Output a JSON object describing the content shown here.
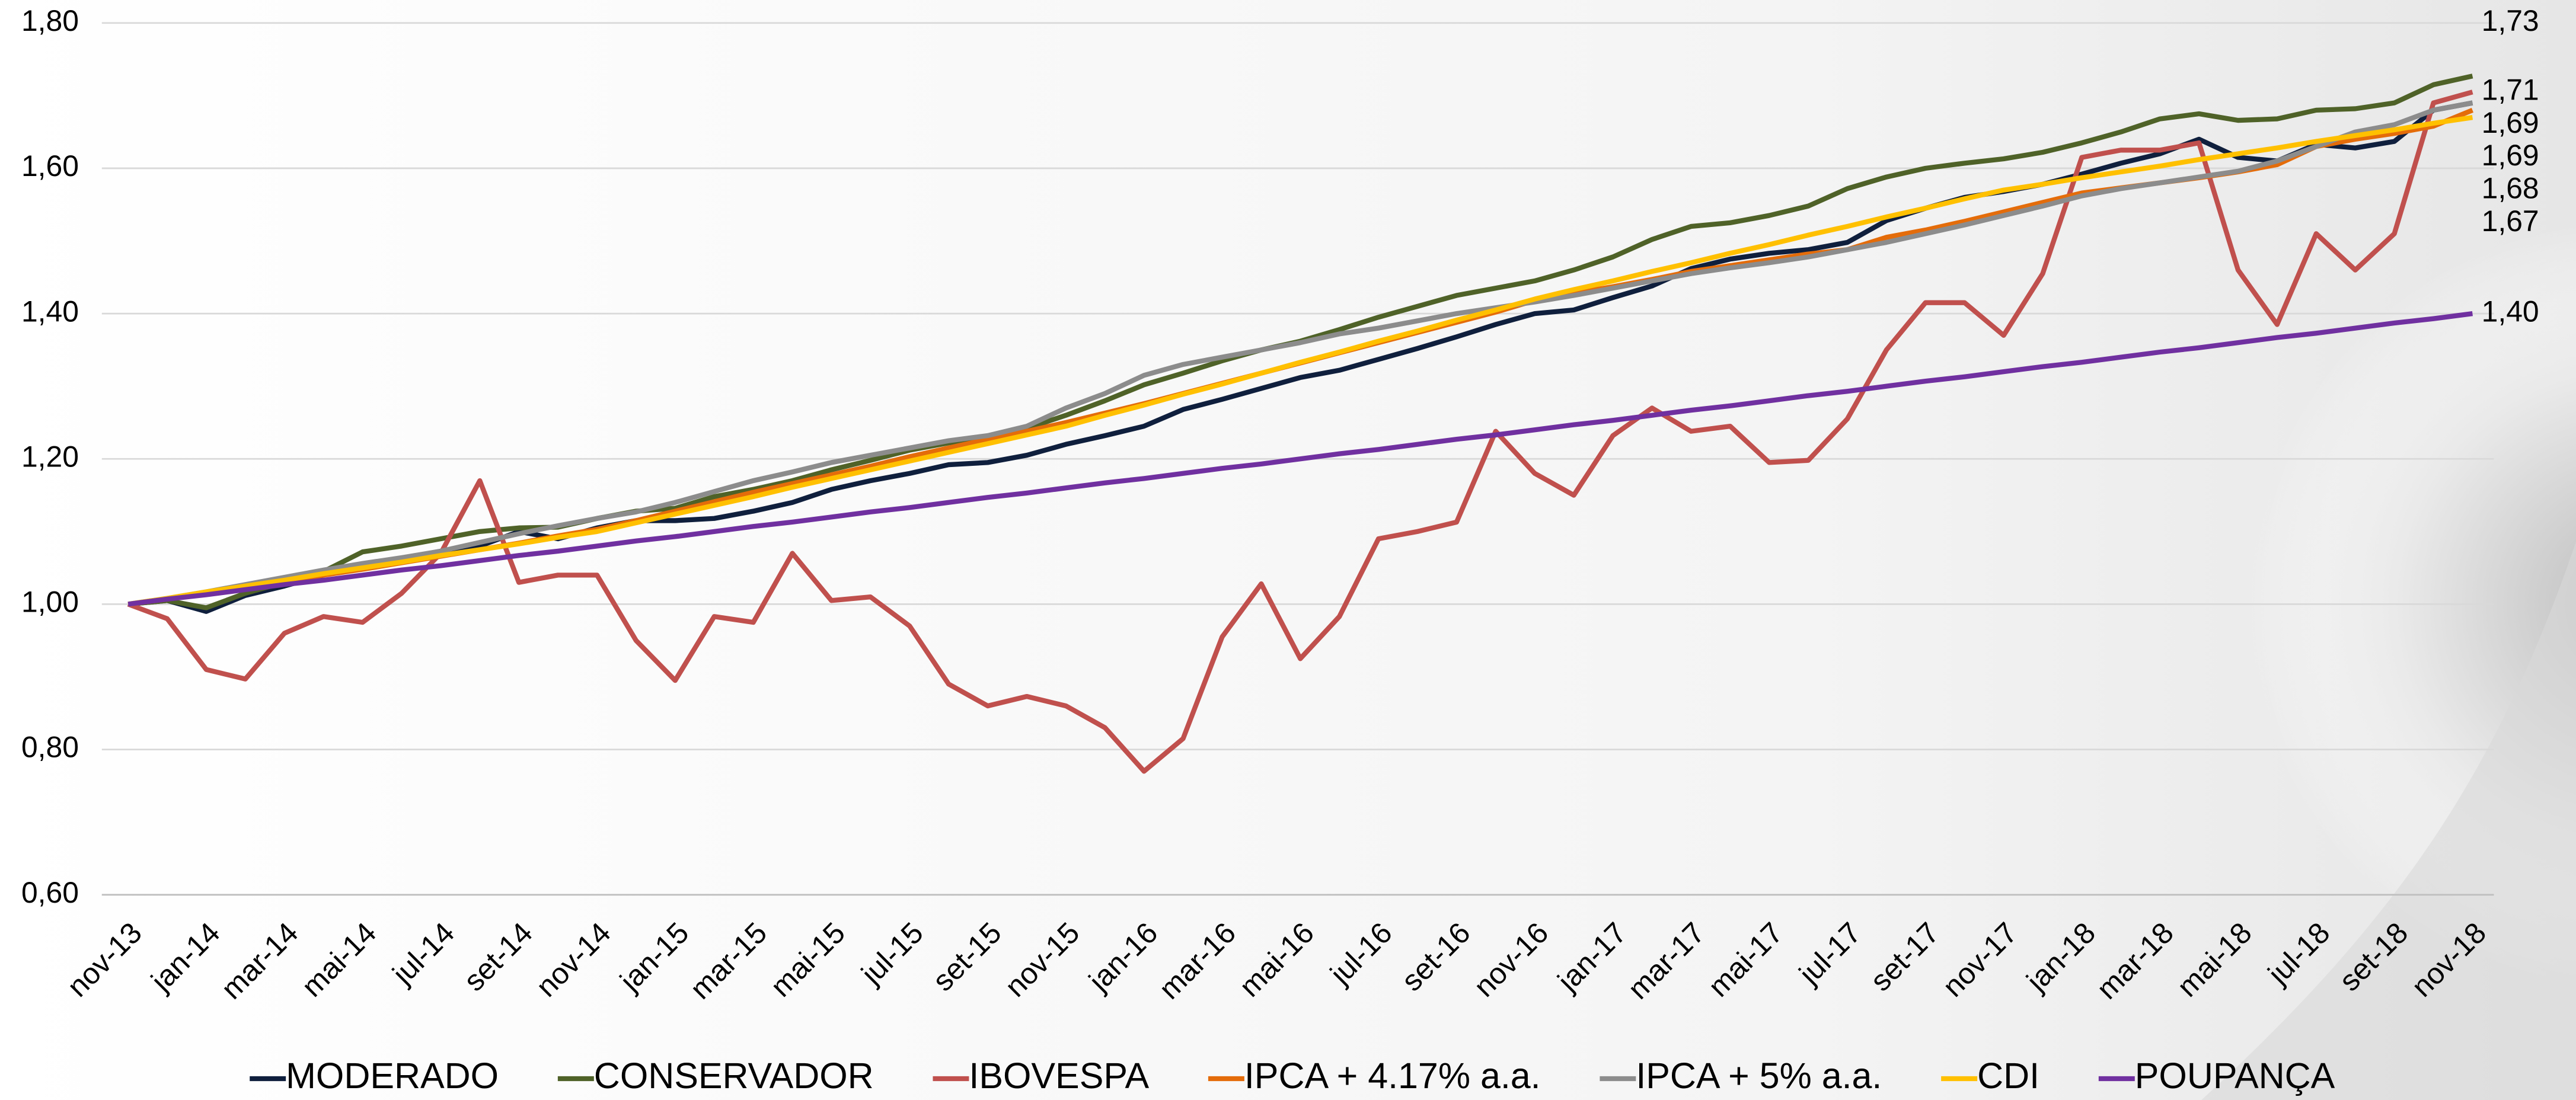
{
  "chart_data": {
    "type": "line",
    "categories": [
      "nov-13",
      null,
      "jan-14",
      null,
      "mar-14",
      null,
      "mai-14",
      null,
      "jul-14",
      null,
      "set-14",
      null,
      "nov-14",
      null,
      "jan-15",
      null,
      "mar-15",
      null,
      "mai-15",
      null,
      "jul-15",
      null,
      "set-15",
      null,
      "nov-15",
      null,
      "jan-16",
      null,
      "mar-16",
      null,
      "mai-16",
      null,
      "jul-16",
      null,
      "set-16",
      null,
      "nov-16",
      null,
      "jan-17",
      null,
      "mar-17",
      null,
      "mai-17",
      null,
      "jul-17",
      null,
      "set-17",
      null,
      "nov-17",
      null,
      "jan-18",
      null,
      "mar-18",
      null,
      "mai-18",
      null,
      "jul-18",
      null,
      "set-18",
      null,
      "nov-18"
    ],
    "ylim": [
      0.6,
      1.8
    ],
    "yticks": [
      {
        "value": 0.6,
        "label": "0,60"
      },
      {
        "value": 0.8,
        "label": "0,80"
      },
      {
        "value": 1.0,
        "label": "1,00"
      },
      {
        "value": 1.2,
        "label": "1,20"
      },
      {
        "value": 1.4,
        "label": "1,40"
      },
      {
        "value": 1.6,
        "label": "1,60"
      },
      {
        "value": 1.8,
        "label": "1,80"
      }
    ],
    "grid": true,
    "legend": "bottom",
    "series": [
      {
        "name": "MODERADO",
        "color": "#0f1f3d",
        "values": [
          1.0,
          1.005,
          0.99,
          1.012,
          1.025,
          1.04,
          1.055,
          1.063,
          1.073,
          1.08,
          1.1,
          1.09,
          1.105,
          1.115,
          1.115,
          1.118,
          1.128,
          1.14,
          1.158,
          1.17,
          1.18,
          1.192,
          1.195,
          1.205,
          1.22,
          1.232,
          1.245,
          1.268,
          1.282,
          1.297,
          1.312,
          1.322,
          1.337,
          1.352,
          1.368,
          1.385,
          1.4,
          1.405,
          1.422,
          1.438,
          1.462,
          1.475,
          1.483,
          1.488,
          1.498,
          1.528,
          1.545,
          1.56,
          1.568,
          1.578,
          1.592,
          1.607,
          1.62,
          1.64,
          1.615,
          1.61,
          1.633,
          1.628,
          1.637,
          1.68,
          1.69
        ],
        "value_labels": [
          null,
          null,
          null,
          null,
          null,
          null,
          null,
          null,
          null,
          null,
          null,
          null,
          null,
          null,
          null,
          null,
          null,
          null,
          null,
          null,
          null,
          null,
          null,
          null,
          null,
          null,
          null,
          null,
          null,
          null,
          null,
          null,
          null,
          null,
          null,
          null,
          null,
          null,
          null,
          null,
          null,
          null,
          null,
          null,
          null,
          null,
          null,
          null,
          null,
          null,
          null,
          null,
          null,
          null,
          null,
          null,
          null,
          null,
          null,
          null,
          "1,69"
        ]
      },
      {
        "name": "CONSERVADOR",
        "color": "#4f6228",
        "values": [
          1.0,
          1.005,
          0.995,
          1.015,
          1.03,
          1.045,
          1.072,
          1.08,
          1.09,
          1.1,
          1.105,
          1.106,
          1.118,
          1.128,
          1.132,
          1.148,
          1.158,
          1.17,
          1.185,
          1.198,
          1.212,
          1.222,
          1.228,
          1.242,
          1.26,
          1.28,
          1.302,
          1.318,
          1.335,
          1.35,
          1.362,
          1.378,
          1.395,
          1.41,
          1.425,
          1.435,
          1.445,
          1.46,
          1.478,
          1.502,
          1.52,
          1.525,
          1.535,
          1.548,
          1.572,
          1.588,
          1.6,
          1.607,
          1.613,
          1.622,
          1.635,
          1.65,
          1.668,
          1.675,
          1.666,
          1.668,
          1.68,
          1.682,
          1.69,
          1.715,
          1.727
        ],
        "value_labels": [
          null,
          null,
          null,
          null,
          null,
          null,
          null,
          null,
          null,
          null,
          null,
          null,
          null,
          null,
          null,
          null,
          null,
          null,
          null,
          null,
          null,
          null,
          null,
          null,
          null,
          null,
          null,
          null,
          null,
          null,
          null,
          null,
          null,
          null,
          null,
          null,
          null,
          null,
          null,
          null,
          null,
          null,
          null,
          null,
          null,
          null,
          null,
          null,
          null,
          null,
          null,
          null,
          null,
          null,
          null,
          null,
          null,
          null,
          null,
          null,
          "1,73"
        ]
      },
      {
        "name": "IBOVESPA",
        "color": "#c0504d",
        "values": [
          1.0,
          0.98,
          0.91,
          0.897,
          0.96,
          0.983,
          0.975,
          1.015,
          1.07,
          1.17,
          1.03,
          1.04,
          1.04,
          0.95,
          0.895,
          0.983,
          0.975,
          1.07,
          1.005,
          1.01,
          0.97,
          0.89,
          0.86,
          0.873,
          0.86,
          0.83,
          0.77,
          0.815,
          0.955,
          1.028,
          0.925,
          0.983,
          1.09,
          1.1,
          1.113,
          1.238,
          1.18,
          1.15,
          1.232,
          1.27,
          1.238,
          1.245,
          1.195,
          1.198,
          1.255,
          1.35,
          1.415,
          1.415,
          1.37,
          1.455,
          1.615,
          1.625,
          1.625,
          1.635,
          1.46,
          1.385,
          1.51,
          1.46,
          1.51,
          1.69,
          1.705
        ],
        "value_labels": [
          null,
          null,
          null,
          null,
          null,
          null,
          null,
          null,
          null,
          null,
          null,
          null,
          null,
          null,
          null,
          null,
          null,
          null,
          null,
          null,
          null,
          null,
          null,
          null,
          null,
          null,
          null,
          null,
          null,
          null,
          null,
          null,
          null,
          null,
          null,
          null,
          null,
          null,
          null,
          null,
          null,
          null,
          null,
          null,
          null,
          null,
          null,
          null,
          null,
          null,
          null,
          null,
          null,
          null,
          null,
          null,
          null,
          null,
          null,
          null,
          "1,71"
        ]
      },
      {
        "name": "IPCA + 4.17% a.a.",
        "color": "#e46c0a",
        "values": [
          1.0,
          1.007,
          1.015,
          1.023,
          1.031,
          1.04,
          1.048,
          1.057,
          1.066,
          1.075,
          1.084,
          1.094,
          1.103,
          1.115,
          1.128,
          1.141,
          1.154,
          1.166,
          1.178,
          1.19,
          1.203,
          1.215,
          1.227,
          1.238,
          1.25,
          1.263,
          1.276,
          1.29,
          1.304,
          1.318,
          1.332,
          1.346,
          1.36,
          1.374,
          1.388,
          1.402,
          1.418,
          1.428,
          1.437,
          1.447,
          1.458,
          1.466,
          1.474,
          1.482,
          1.488,
          1.505,
          1.515,
          1.527,
          1.54,
          1.553,
          1.566,
          1.573,
          1.58,
          1.587,
          1.595,
          1.605,
          1.63,
          1.64,
          1.648,
          1.658,
          1.68
        ],
        "value_labels": [
          null,
          null,
          null,
          null,
          null,
          null,
          null,
          null,
          null,
          null,
          null,
          null,
          null,
          null,
          null,
          null,
          null,
          null,
          null,
          null,
          null,
          null,
          null,
          null,
          null,
          null,
          null,
          null,
          null,
          null,
          null,
          null,
          null,
          null,
          null,
          null,
          null,
          null,
          null,
          null,
          null,
          null,
          null,
          null,
          null,
          null,
          null,
          null,
          null,
          null,
          null,
          null,
          null,
          null,
          null,
          null,
          null,
          null,
          null,
          null,
          "1,68"
        ]
      },
      {
        "name": "IPCA + 5% a.a.",
        "color": "#8c8c8c",
        "values": [
          1.0,
          1.008,
          1.017,
          1.027,
          1.037,
          1.047,
          1.056,
          1.064,
          1.073,
          1.085,
          1.097,
          1.108,
          1.118,
          1.127,
          1.14,
          1.155,
          1.17,
          1.182,
          1.195,
          1.205,
          1.215,
          1.225,
          1.232,
          1.245,
          1.27,
          1.29,
          1.315,
          1.33,
          1.34,
          1.35,
          1.36,
          1.372,
          1.38,
          1.39,
          1.4,
          1.408,
          1.416,
          1.425,
          1.435,
          1.445,
          1.455,
          1.463,
          1.47,
          1.478,
          1.488,
          1.498,
          1.51,
          1.522,
          1.535,
          1.548,
          1.562,
          1.572,
          1.58,
          1.588,
          1.596,
          1.61,
          1.63,
          1.65,
          1.66,
          1.68,
          1.69
        ],
        "value_labels": [
          null,
          null,
          null,
          null,
          null,
          null,
          null,
          null,
          null,
          null,
          null,
          null,
          null,
          null,
          null,
          null,
          null,
          null,
          null,
          null,
          null,
          null,
          null,
          null,
          null,
          null,
          null,
          null,
          null,
          null,
          null,
          null,
          null,
          null,
          null,
          null,
          null,
          null,
          null,
          null,
          null,
          null,
          null,
          null,
          null,
          null,
          null,
          null,
          null,
          null,
          null,
          null,
          null,
          null,
          null,
          null,
          null,
          null,
          null,
          null,
          "1,69"
        ]
      },
      {
        "name": "CDI",
        "color": "#ffc000",
        "values": [
          1.0,
          1.008,
          1.017,
          1.025,
          1.033,
          1.042,
          1.05,
          1.058,
          1.067,
          1.075,
          1.083,
          1.092,
          1.1,
          1.112,
          1.124,
          1.136,
          1.148,
          1.161,
          1.173,
          1.185,
          1.197,
          1.209,
          1.221,
          1.233,
          1.245,
          1.26,
          1.274,
          1.289,
          1.303,
          1.318,
          1.333,
          1.347,
          1.362,
          1.376,
          1.391,
          1.405,
          1.42,
          1.433,
          1.445,
          1.458,
          1.47,
          1.483,
          1.495,
          1.508,
          1.52,
          1.533,
          1.545,
          1.558,
          1.57,
          1.578,
          1.587,
          1.595,
          1.603,
          1.612,
          1.62,
          1.628,
          1.637,
          1.645,
          1.653,
          1.662,
          1.67
        ],
        "value_labels": [
          null,
          null,
          null,
          null,
          null,
          null,
          null,
          null,
          null,
          null,
          null,
          null,
          null,
          null,
          null,
          null,
          null,
          null,
          null,
          null,
          null,
          null,
          null,
          null,
          null,
          null,
          null,
          null,
          null,
          null,
          null,
          null,
          null,
          null,
          null,
          null,
          null,
          null,
          null,
          null,
          null,
          null,
          null,
          null,
          null,
          null,
          null,
          null,
          null,
          null,
          null,
          null,
          null,
          null,
          null,
          null,
          null,
          null,
          null,
          null,
          "1,67"
        ]
      },
      {
        "name": "POUPANÇA",
        "color": "#7030a0",
        "values": [
          1.0,
          1.007,
          1.013,
          1.02,
          1.027,
          1.033,
          1.04,
          1.047,
          1.053,
          1.06,
          1.067,
          1.073,
          1.08,
          1.087,
          1.093,
          1.1,
          1.107,
          1.113,
          1.12,
          1.127,
          1.133,
          1.14,
          1.147,
          1.153,
          1.16,
          1.167,
          1.173,
          1.18,
          1.187,
          1.193,
          1.2,
          1.207,
          1.213,
          1.22,
          1.227,
          1.233,
          1.24,
          1.247,
          1.253,
          1.26,
          1.267,
          1.273,
          1.28,
          1.287,
          1.293,
          1.3,
          1.307,
          1.313,
          1.32,
          1.327,
          1.333,
          1.34,
          1.347,
          1.353,
          1.36,
          1.367,
          1.373,
          1.38,
          1.387,
          1.393,
          1.4
        ],
        "value_labels": [
          null,
          null,
          null,
          null,
          null,
          null,
          null,
          null,
          null,
          null,
          null,
          null,
          null,
          null,
          null,
          null,
          null,
          null,
          null,
          null,
          null,
          null,
          null,
          null,
          null,
          null,
          null,
          null,
          null,
          null,
          null,
          null,
          null,
          null,
          null,
          null,
          null,
          null,
          null,
          null,
          null,
          null,
          null,
          null,
          null,
          null,
          null,
          null,
          null,
          null,
          null,
          null,
          null,
          null,
          null,
          null,
          null,
          null,
          null,
          null,
          "1,40"
        ]
      }
    ]
  }
}
